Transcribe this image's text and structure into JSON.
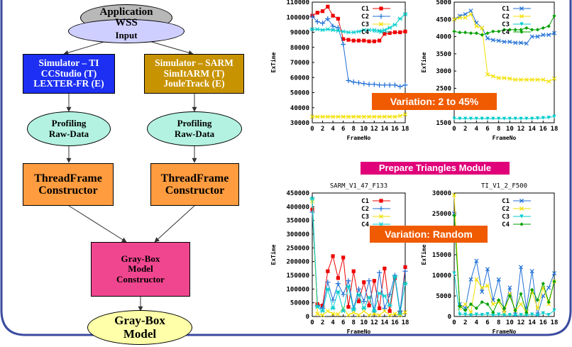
{
  "flow": {
    "app": {
      "line1": "Application",
      "line2": "WSS"
    },
    "input_label": "Input",
    "sim_ti": {
      "line1": "Simulator – TI",
      "line2": "CCStudio (T)",
      "line3": "LEXTER-FR (E)"
    },
    "sim_sarm": {
      "line1": "Simulator – SARM",
      "line2": "SimItARM (T)",
      "line3": "JouleTrack (E)"
    },
    "profiling_left": {
      "line1": "Profiling",
      "line2": "Raw-Data"
    },
    "profiling_right": {
      "line1": "Profiling",
      "line2": "Raw-Data"
    },
    "tf_left": {
      "line1": "ThreadFrame",
      "line2": "Constructor"
    },
    "tf_right": {
      "line1": "ThreadFrame",
      "line2": "Constructor"
    },
    "gb_constructor": {
      "line1": "Gray-Box",
      "line2": "Model",
      "line3": "Constructor"
    },
    "gb_model": {
      "line1": "Gray-Box",
      "line2": "Model"
    }
  },
  "annotations": {
    "variation_top": "Variation: 2 to 45%",
    "module_title": "Prepare Triangles Module",
    "variation_bottom": "Variation: Random"
  },
  "colors": {
    "C1": "#ee0000",
    "C2": "#1f6fd6",
    "C3": "#f2e000",
    "C4": "#00cccc",
    "C4_alt": "#00a000",
    "blue_box": "#1c2ff2",
    "gold_box": "#c89300",
    "orange_box": "#ff9c3f",
    "pink_box": "#f0468f",
    "frame": "#3a4aa0"
  },
  "chart_data": [
    {
      "type": "line",
      "title": "",
      "xlabel": "FrameNo",
      "ylabel": "ExTime",
      "xlim": [
        0,
        18
      ],
      "ylim": [
        30000,
        110000
      ],
      "xticks": [
        "0",
        "2",
        "4",
        "6",
        "8",
        "10",
        "12",
        "14",
        "16",
        "18"
      ],
      "yticks": [
        "30000",
        "40000",
        "50000",
        "60000",
        "70000",
        "80000",
        "90000",
        "100000",
        "110000"
      ],
      "x": [
        0,
        1,
        2,
        3,
        4,
        5,
        6,
        7,
        8,
        9,
        10,
        11,
        12,
        13,
        14,
        15,
        16,
        17,
        18
      ],
      "series": [
        {
          "name": "C1",
          "color": "#ee0000",
          "marker": "square",
          "values": [
            101000,
            103000,
            104000,
            107000,
            101000,
            99000,
            85500,
            85000,
            84500,
            84500,
            84500,
            84000,
            84000,
            84500,
            89000,
            89500,
            90000,
            90000,
            90500
          ]
        },
        {
          "name": "C2",
          "color": "#1f6fd6",
          "marker": "plus",
          "values": [
            100500,
            97000,
            96000,
            99000,
            94000,
            93000,
            82000,
            58000,
            57000,
            56500,
            56000,
            55500,
            55500,
            55000,
            55000,
            55000,
            55000,
            54000,
            55000
          ]
        },
        {
          "name": "C3",
          "color": "#f2e000",
          "marker": "x",
          "values": [
            34000,
            34000,
            34000,
            34000,
            34000,
            34000,
            34000,
            34000,
            34000,
            34000,
            34000,
            34000,
            34000,
            34000,
            34000,
            34000,
            34000,
            34500,
            35500
          ]
        },
        {
          "name": "C4",
          "color": "#00cccc",
          "marker": "star",
          "values": [
            92000,
            92000,
            91500,
            92000,
            91500,
            91000,
            90500,
            90000,
            90000,
            90500,
            91500,
            91500,
            91500,
            91000,
            91500,
            93000,
            95000,
            99000,
            102000
          ]
        }
      ]
    },
    {
      "type": "line",
      "title": "",
      "xlabel": "FrameNo",
      "ylabel": "ExTime",
      "xlim": [
        0,
        18
      ],
      "ylim": [
        1500,
        5000
      ],
      "xticks": [
        "0",
        "2",
        "4",
        "6",
        "8",
        "10",
        "12",
        "14",
        "16",
        "18"
      ],
      "yticks": [
        "1500",
        "2000",
        "2500",
        "3000",
        "3500",
        "4000",
        "4500",
        "5000"
      ],
      "x": [
        0,
        1,
        2,
        3,
        4,
        5,
        6,
        7,
        8,
        9,
        10,
        11,
        12,
        13,
        14,
        15,
        16,
        17,
        18
      ],
      "series": [
        {
          "name": "C1",
          "color": "#1f6fd6",
          "marker": "x",
          "values": [
            4500,
            4600,
            4650,
            4750,
            4400,
            4250,
            3950,
            3900,
            3880,
            3850,
            3850,
            3820,
            3820,
            3800,
            4000,
            4000,
            4050,
            4050,
            4100
          ]
        },
        {
          "name": "C2",
          "color": "#f2e000",
          "marker": "x",
          "values": [
            4500,
            4550,
            4550,
            4650,
            4300,
            4250,
            2900,
            2850,
            2800,
            2800,
            2780,
            2750,
            2750,
            2750,
            2750,
            2750,
            2750,
            2700,
            2780
          ]
        },
        {
          "name": "C3",
          "color": "#00cccc",
          "marker": "triangle",
          "values": [
            1620,
            1620,
            1620,
            1620,
            1620,
            1620,
            1620,
            1620,
            1620,
            1620,
            1620,
            1620,
            1620,
            1620,
            1620,
            1630,
            1640,
            1650,
            1680
          ]
        },
        {
          "name": "C4",
          "color": "#00a000",
          "marker": "diamond",
          "values": [
            4150,
            4120,
            4120,
            4100,
            4100,
            4050,
            4100,
            4150,
            4150,
            4200,
            4200,
            4200,
            4200,
            4250,
            4200,
            4200,
            4250,
            4300,
            4600
          ]
        }
      ]
    },
    {
      "type": "line",
      "title": "SARM_V1_47_F133",
      "xlabel": "FrameNo",
      "ylabel": "ExTime",
      "xlim": [
        0,
        18
      ],
      "ylim": [
        0,
        450000
      ],
      "xticks": [
        "0",
        "2",
        "4",
        "6",
        "8",
        "10",
        "12",
        "14",
        "16",
        "18"
      ],
      "yticks": [
        "0",
        "50000",
        "100000",
        "150000",
        "200000",
        "250000",
        "300000",
        "350000",
        "400000",
        "450000"
      ],
      "x": [
        0,
        1,
        2,
        3,
        4,
        5,
        6,
        7,
        8,
        9,
        10,
        11,
        12,
        13,
        14,
        15,
        16,
        17,
        18
      ],
      "series": [
        {
          "name": "C1",
          "color": "#ee0000",
          "marker": "square",
          "values": [
            390000,
            45000,
            40000,
            165000,
            220000,
            140000,
            215000,
            35000,
            165000,
            55000,
            125000,
            40000,
            130000,
            30000,
            175000,
            20000,
            140000,
            15000,
            180000
          ]
        },
        {
          "name": "C2",
          "color": "#1f6fd6",
          "marker": "plus",
          "values": [
            380000,
            40000,
            30000,
            125000,
            60000,
            120000,
            80000,
            130000,
            30000,
            100000,
            55000,
            130000,
            20000,
            160000,
            30000,
            80000,
            150000,
            20000,
            165000
          ]
        },
        {
          "name": "C3",
          "color": "#f2e000",
          "marker": "x",
          "values": [
            420000,
            10000,
            5000,
            20000,
            10000,
            8000,
            30000,
            5000,
            15000,
            5000,
            20000,
            5000,
            10000,
            5000,
            20000,
            5000,
            10000,
            5000,
            15000
          ]
        },
        {
          "name": "C4",
          "color": "#00cccc",
          "marker": "star",
          "values": [
            430000,
            35000,
            20000,
            100000,
            30000,
            90000,
            20000,
            110000,
            25000,
            80000,
            30000,
            70000,
            20000,
            85000,
            75000,
            40000,
            145000,
            10000,
            120000
          ]
        }
      ]
    },
    {
      "type": "line",
      "title": "TI_V1_2_F500",
      "xlabel": "FrameNo",
      "ylabel": "ExTime",
      "xlim": [
        0,
        18
      ],
      "ylim": [
        0,
        30000
      ],
      "xticks": [
        "0",
        "2",
        "4",
        "6",
        "8",
        "10",
        "12",
        "14",
        "16",
        "18"
      ],
      "yticks": [
        "0",
        "5000",
        "10000",
        "15000",
        "20000",
        "25000",
        "30000"
      ],
      "x": [
        0,
        1,
        2,
        3,
        4,
        5,
        6,
        7,
        8,
        9,
        10,
        11,
        12,
        13,
        14,
        15,
        16,
        17,
        18
      ],
      "series": [
        {
          "name": "C1",
          "color": "#1f6fd6",
          "marker": "x",
          "values": [
            25000,
            3000,
            2000,
            9000,
            13500,
            6000,
            11500,
            4000,
            9000,
            1500,
            7000,
            500,
            12000,
            2000,
            11000,
            500,
            5000,
            7000,
            10500
          ]
        },
        {
          "name": "C2",
          "color": "#f2e000",
          "marker": "x",
          "values": [
            29500,
            2000,
            3000,
            1000,
            9000,
            7000,
            7500,
            3000,
            3500,
            1000,
            5500,
            1500,
            3000,
            1000,
            6000,
            2000,
            7000,
            3000,
            8500
          ]
        },
        {
          "name": "C3",
          "color": "#00cccc",
          "marker": "triangle",
          "values": [
            10500,
            500,
            500,
            300,
            500,
            400,
            600,
            300,
            500,
            300,
            400,
            300,
            400,
            300,
            500,
            300,
            800,
            400,
            1500
          ]
        },
        {
          "name": "C4",
          "color": "#00a000",
          "marker": "diamond",
          "values": [
            24500,
            2500,
            1500,
            3000,
            2000,
            3500,
            3000,
            1000,
            4000,
            2000,
            5000,
            1500,
            5500,
            1000,
            6500,
            4000,
            8000,
            3500,
            8500
          ]
        }
      ]
    }
  ]
}
